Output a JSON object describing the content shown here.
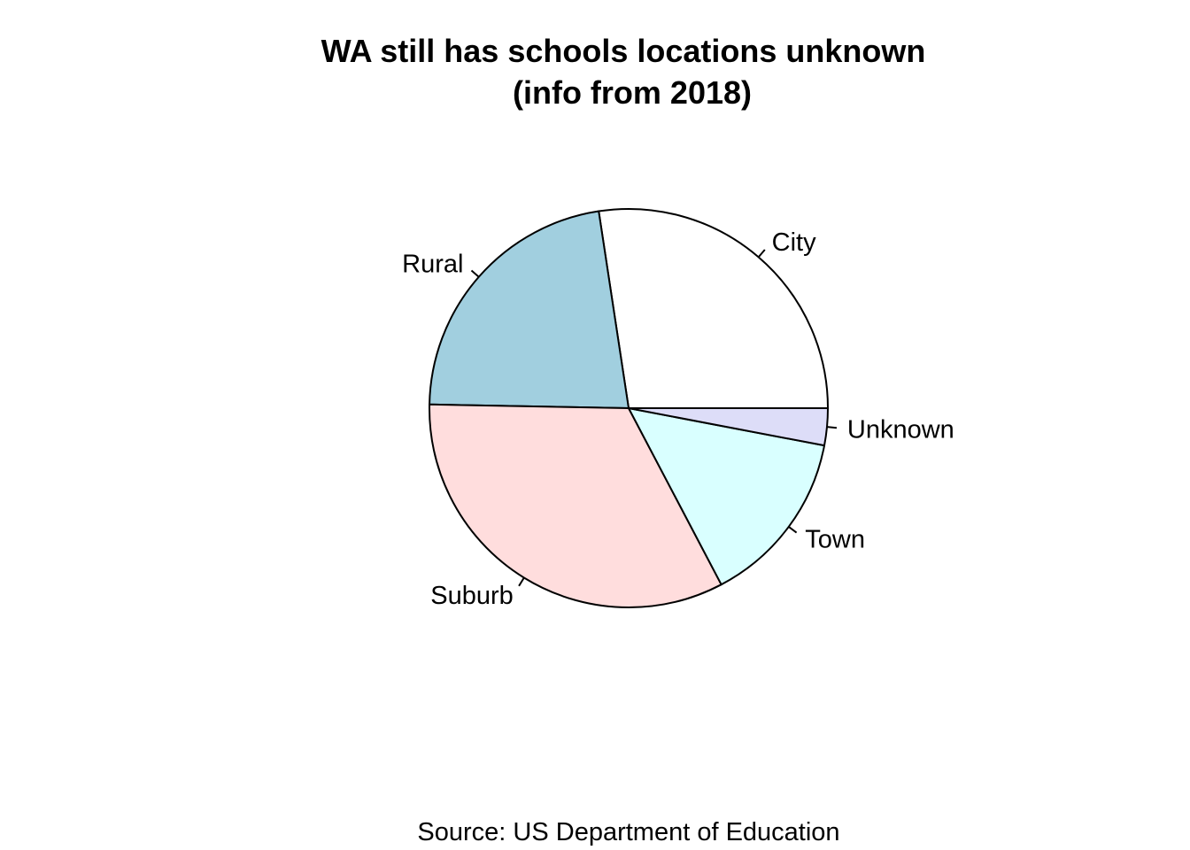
{
  "chart_data": {
    "type": "pie",
    "title": "WA still has schools locations unknown",
    "subtitle": "(info from 2018)",
    "caption": "Source: US Department of Education",
    "direction": "counterclockwise",
    "start": "3 o'clock",
    "slices": [
      {
        "label": "City",
        "value": 27.4,
        "color": "#FFFFFF"
      },
      {
        "label": "Rural",
        "value": 22.3,
        "color": "#A1CFDF"
      },
      {
        "label": "Suburb",
        "value": 33.0,
        "color": "#FFDDDD"
      },
      {
        "label": "Town",
        "value": 14.3,
        "color": "#D9FFFF"
      },
      {
        "label": "Unknown",
        "value": 3.0,
        "color": "#DDDDF8"
      }
    ]
  }
}
